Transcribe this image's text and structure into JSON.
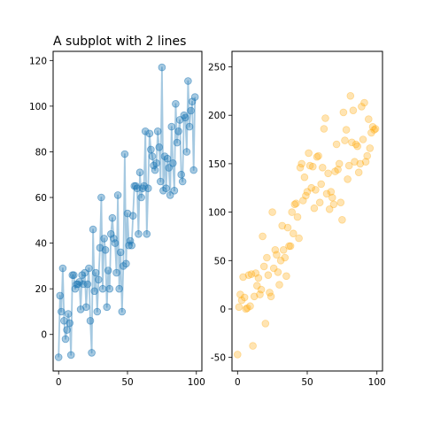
{
  "chart_data": [
    {
      "type": "line",
      "title": "A subplot with 2 lines",
      "xlabel": "",
      "ylabel": "",
      "xlim": [
        -4,
        104
      ],
      "ylim": [
        -16,
        124
      ],
      "xticks": [
        0,
        50,
        100
      ],
      "yticks": [
        0,
        20,
        40,
        60,
        80,
        100,
        120
      ],
      "grid": false,
      "series": [
        {
          "color": "#1f77b4",
          "marker": "o",
          "x": [
            0,
            1,
            2,
            3,
            4,
            5,
            6,
            7,
            8,
            9,
            10,
            11,
            12,
            13,
            14,
            15,
            16,
            17,
            18,
            19,
            20,
            21,
            22,
            23,
            24,
            25,
            26,
            27,
            28,
            29,
            30,
            31,
            32,
            33,
            34,
            35,
            36,
            37,
            38,
            39,
            40,
            41,
            42,
            43,
            44,
            45,
            46,
            47,
            48,
            49,
            50,
            51,
            52,
            53,
            54,
            55,
            56,
            57,
            58,
            59,
            60,
            61,
            62,
            63,
            64,
            65,
            66,
            67,
            68,
            69,
            70,
            71,
            72,
            73,
            74,
            75,
            76,
            77,
            78,
            79,
            80,
            81,
            82,
            83,
            84,
            85,
            86,
            87,
            88,
            89,
            90,
            91,
            92,
            93,
            94,
            95,
            96,
            97,
            98,
            99
          ],
          "y": [
            -10,
            17,
            10,
            29,
            6,
            -2,
            2,
            9,
            5,
            -9,
            26,
            26,
            20,
            22,
            22,
            23,
            11,
            26,
            22,
            27,
            12,
            22,
            29,
            6,
            -8,
            46,
            19,
            27,
            10,
            24,
            38,
            60,
            20,
            42,
            37,
            12,
            28,
            20,
            44,
            51,
            42,
            40,
            27,
            61,
            20,
            36,
            10,
            30,
            79,
            31,
            53,
            39,
            41,
            39,
            52,
            65,
            65,
            64,
            44,
            71,
            60,
            64,
            65,
            89,
            44,
            64,
            88,
            81,
            78,
            74,
            72,
            75,
            89,
            82,
            67,
            117,
            63,
            78,
            64,
            77,
            73,
            61,
            91,
            75,
            63,
            101,
            84,
            89,
            94,
            70,
            67,
            96,
            95,
            80,
            111,
            91,
            98,
            102,
            72,
            104
          ]
        }
      ]
    },
    {
      "type": "scatter",
      "title": "",
      "xlabel": "",
      "ylabel": "",
      "xlim": [
        -4,
        104
      ],
      "ylim": [
        -64,
        266
      ],
      "xticks": [
        0,
        50,
        100
      ],
      "yticks": [
        -50,
        0,
        50,
        100,
        150,
        200,
        250
      ],
      "grid": false,
      "series": [
        {
          "color": "#ffa500",
          "marker": "o",
          "x": [
            0,
            1,
            2,
            3,
            4,
            5,
            6,
            7,
            8,
            9,
            10,
            11,
            12,
            13,
            14,
            15,
            16,
            17,
            18,
            19,
            20,
            21,
            22,
            23,
            24,
            25,
            26,
            27,
            28,
            29,
            30,
            31,
            32,
            33,
            34,
            35,
            36,
            37,
            38,
            39,
            40,
            41,
            42,
            43,
            44,
            45,
            46,
            47,
            48,
            49,
            50,
            51,
            52,
            53,
            54,
            55,
            56,
            57,
            58,
            59,
            60,
            61,
            62,
            63,
            64,
            65,
            66,
            67,
            68,
            69,
            70,
            71,
            72,
            73,
            74,
            75,
            76,
            77,
            78,
            79,
            80,
            81,
            82,
            83,
            84,
            85,
            86,
            87,
            88,
            89,
            90,
            91,
            92,
            93,
            94,
            95,
            96,
            97,
            98,
            99
          ],
          "y": [
            -47,
            2,
            15,
            9,
            33,
            12,
            0,
            1,
            35,
            3,
            36,
            -38,
            13,
            37,
            24,
            32,
            15,
            20,
            75,
            44,
            -15,
            53,
            35,
            17,
            13,
            100,
            42,
            61,
            56,
            38,
            25,
            50,
            86,
            61,
            53,
            34,
            84,
            65,
            65,
            100,
            78,
            108,
            109,
            95,
            73,
            146,
            150,
            112,
            136,
            117,
            121,
            161,
            148,
            125,
            147,
            104,
            123,
            157,
            158,
            110,
            129,
            146,
            186,
            197,
            119,
            140,
            103,
            121,
            115,
            108,
            142,
            170,
            144,
            150,
            110,
            92,
            203,
            174,
            185,
            134,
            148,
            220,
            172,
            205,
            152,
            170,
            168,
            141,
            150,
            209,
            175,
            213,
            152,
            158,
            196,
            166,
            182,
            188,
            185,
            186
          ]
        }
      ]
    }
  ]
}
